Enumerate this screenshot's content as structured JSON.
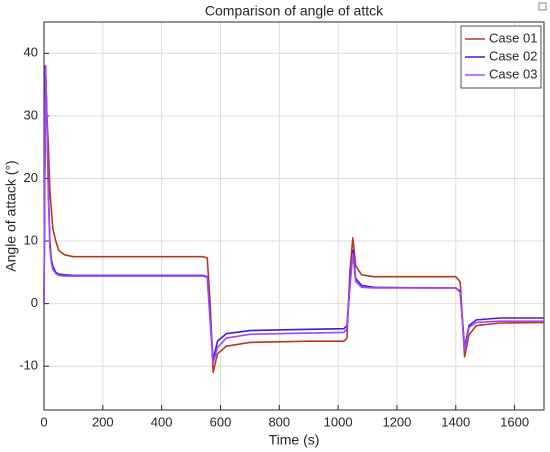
{
  "chart_data": {
    "type": "line",
    "title": "Comparison of angle of attck",
    "xlabel": "Time (s)",
    "ylabel": "Angle of attack (°)",
    "x": [
      0,
      5,
      10,
      15,
      20,
      25,
      30,
      40,
      50,
      70,
      100,
      300,
      540,
      555,
      565,
      575,
      590,
      620,
      700,
      900,
      1020,
      1030,
      1040,
      1050,
      1060,
      1080,
      1120,
      1300,
      1400,
      1415,
      1430,
      1445,
      1470,
      1550,
      1700
    ],
    "series": [
      {
        "name": "Case 01",
        "color": "#b5391e",
        "values": [
          0,
          38,
          30,
          25,
          18,
          15,
          12,
          10,
          8.5,
          7.8,
          7.5,
          7.5,
          7.5,
          7.3,
          0,
          -11,
          -8,
          -6.8,
          -6.2,
          -6,
          -6,
          -5.5,
          5,
          10.5,
          6,
          4.6,
          4.3,
          4.3,
          4.3,
          3.5,
          -8.5,
          -5,
          -3.5,
          -3.1,
          -3
        ]
      },
      {
        "name": "Case 02",
        "color": "#3322e0",
        "values": [
          0,
          38,
          29,
          18,
          10,
          7,
          6,
          5,
          4.7,
          4.6,
          4.5,
          4.5,
          4.5,
          4.3,
          -2,
          -9,
          -6,
          -4.8,
          -4.3,
          -4.1,
          -4,
          -3.5,
          3,
          8.5,
          4,
          2.9,
          2.6,
          2.5,
          2.5,
          2,
          -7,
          -3.5,
          -2.6,
          -2.3,
          -2.3
        ]
      },
      {
        "name": "Case 03",
        "color": "#a545ff",
        "values": [
          0,
          38,
          29.5,
          17,
          9,
          6.5,
          5.5,
          4.8,
          4.5,
          4.4,
          4.4,
          4.4,
          4.4,
          4.2,
          -3,
          -9.5,
          -7,
          -5.5,
          -4.9,
          -4.7,
          -4.6,
          -4,
          2.5,
          8,
          3.5,
          2.6,
          2.5,
          2.5,
          2.5,
          1.8,
          -7.5,
          -3.8,
          -3,
          -2.8,
          -2.8
        ]
      }
    ],
    "xlim": [
      0,
      1700
    ],
    "xticks": [
      0,
      200,
      400,
      600,
      800,
      1000,
      1200,
      1400,
      1600
    ],
    "ylim": [
      -17,
      45
    ],
    "yticks": [
      -10,
      0,
      10,
      20,
      30,
      40
    ],
    "grid": true,
    "legend": "top-right"
  }
}
